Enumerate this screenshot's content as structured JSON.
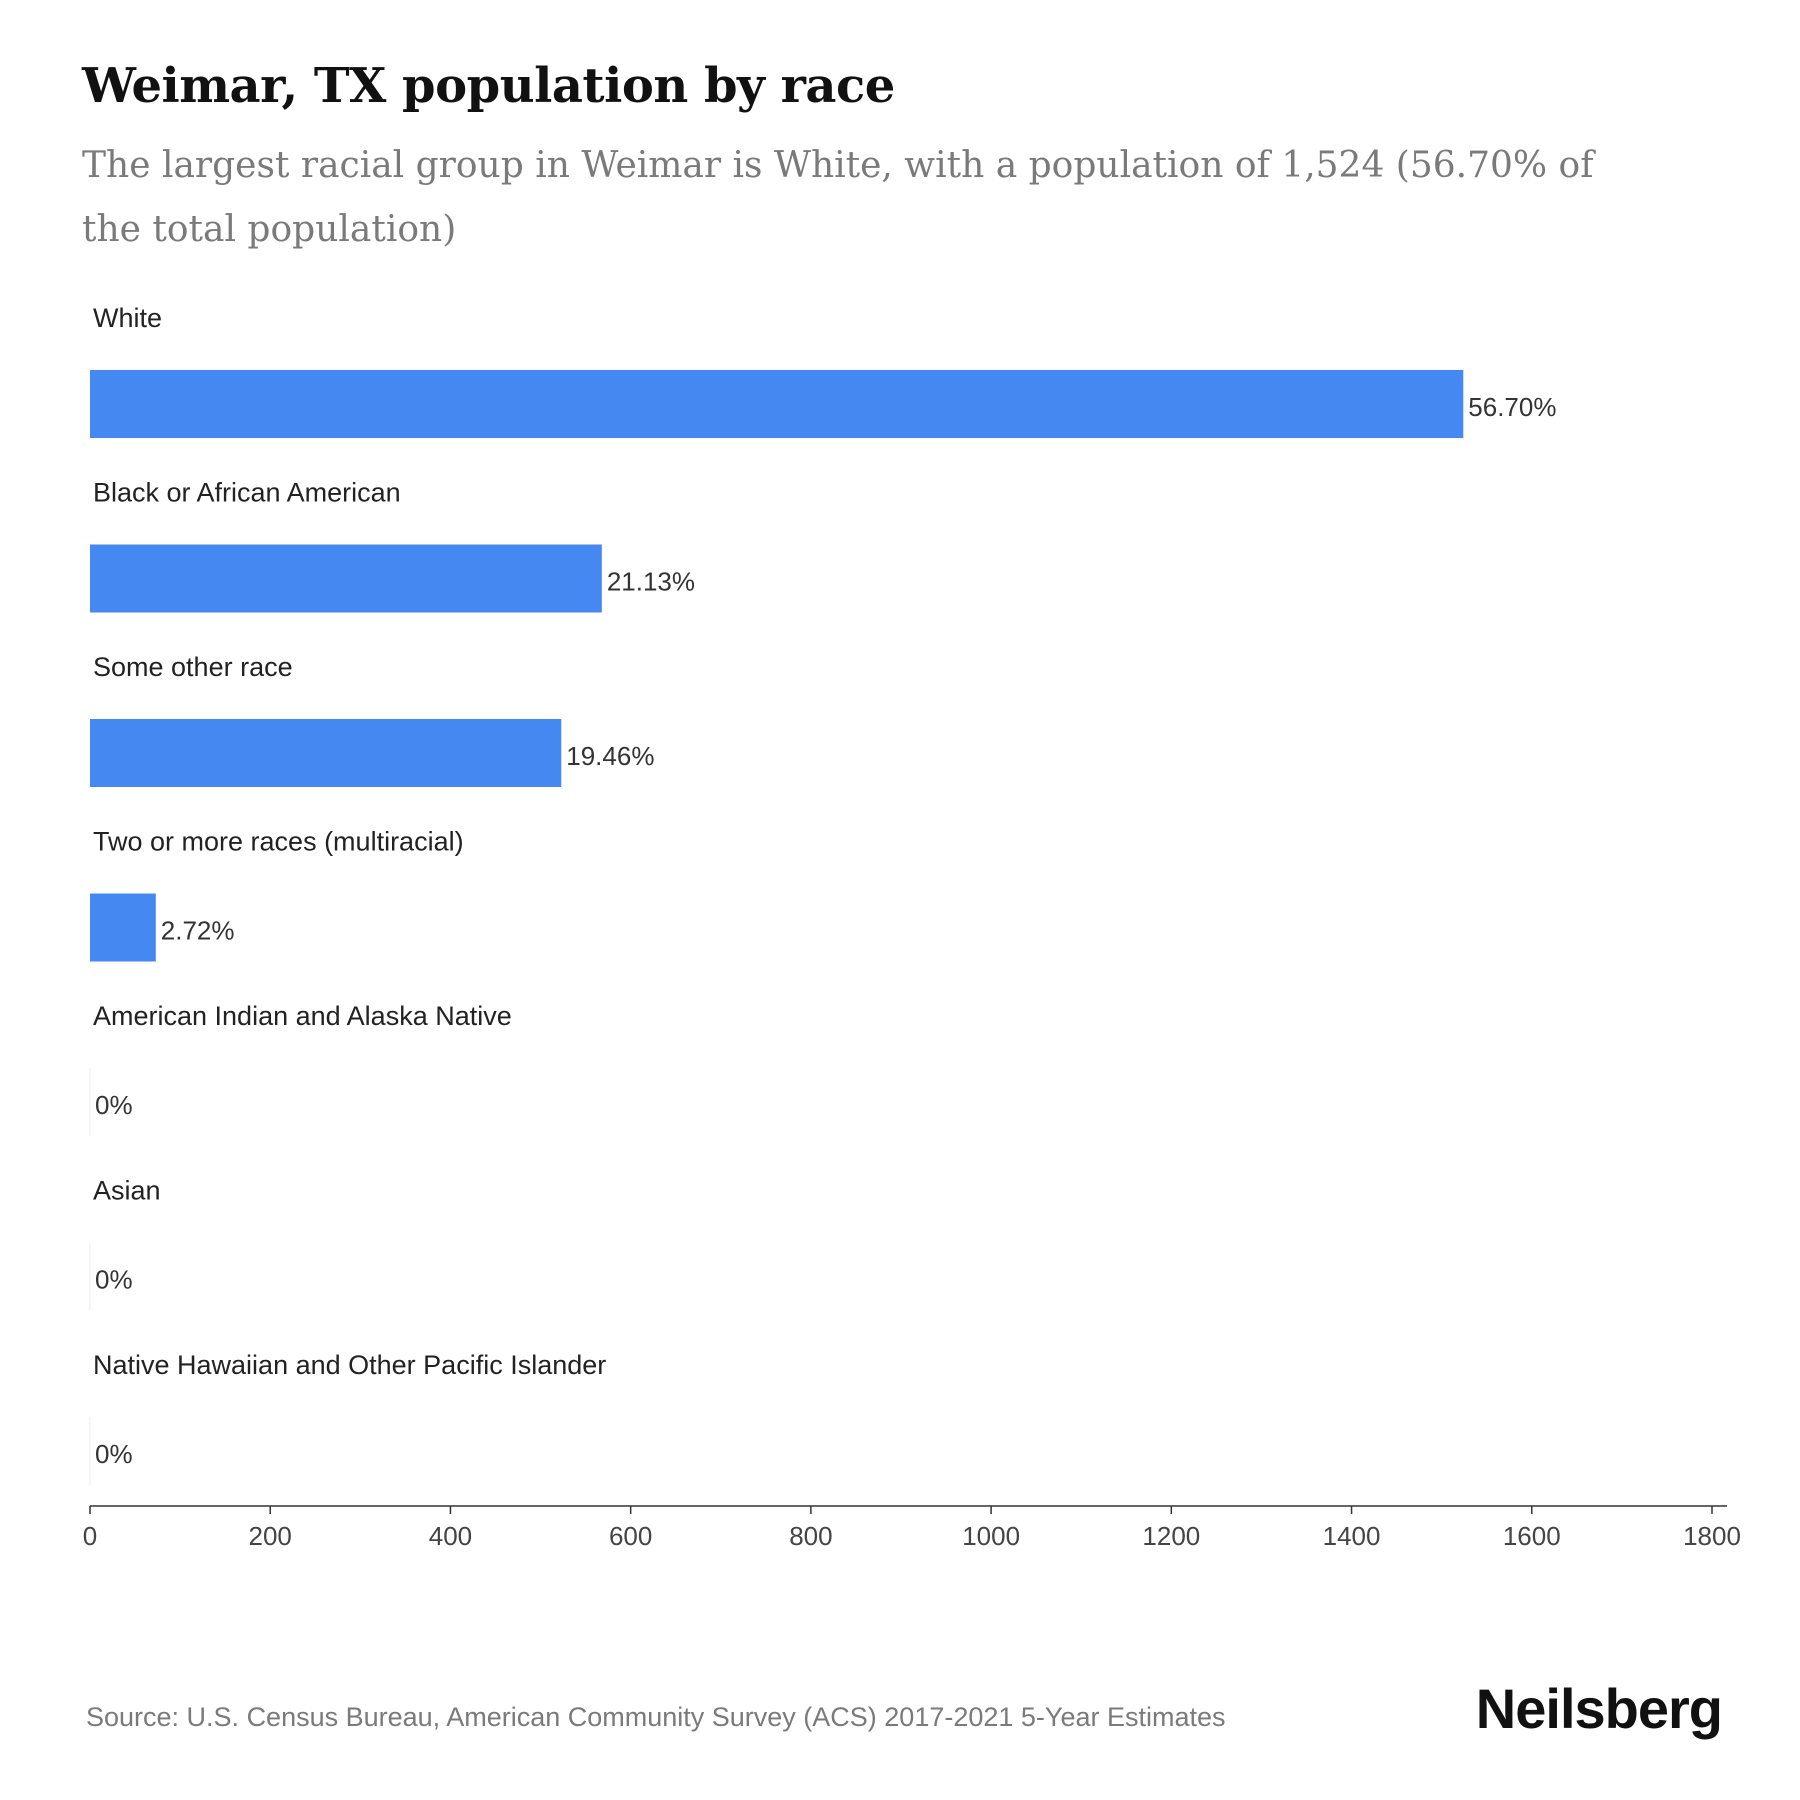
{
  "header": {
    "title": "Weimar, TX population by race",
    "subtitle": "The largest racial group in Weimar is White, with a population of 1,524 (56.70% of the total population)"
  },
  "chart_data": {
    "type": "bar",
    "orientation": "horizontal",
    "title": "Weimar, TX population by race",
    "subtitle": "The largest racial group in Weimar is White, with a population of 1,524 (56.70% of the total population)",
    "categories": [
      "White",
      "Black or African American",
      "Some other race",
      "Two or more races (multiracial)",
      "American Indian and Alaska Native",
      "Asian",
      "Native Hawaiian and Other Pacific Islander"
    ],
    "values": [
      1524,
      568,
      523,
      73,
      0,
      0,
      0
    ],
    "value_labels": [
      "56.70%",
      "21.13%",
      "19.46%",
      "2.72%",
      "0%",
      "0%",
      "0%"
    ],
    "xlim": [
      0,
      1800
    ],
    "x_ticks": [
      0,
      200,
      400,
      600,
      800,
      1000,
      1200,
      1400,
      1600,
      1800
    ],
    "xlabel": "",
    "ylabel": "",
    "grid": false,
    "legend": "none",
    "bar_color": "#4688f2"
  },
  "footer": {
    "source": "Source: U.S. Census Bureau, American Community Survey (ACS) 2017-2021 5-Year Estimates",
    "brand": "Neilsberg"
  }
}
